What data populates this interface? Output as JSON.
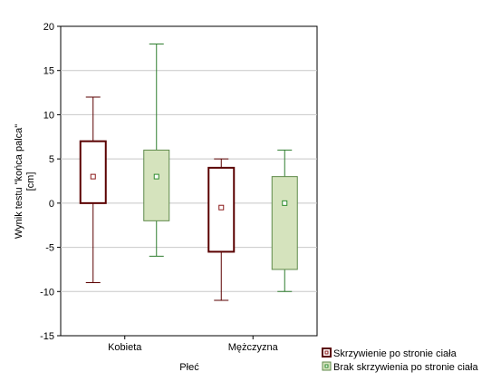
{
  "chart_data": {
    "type": "box",
    "xlabel": "Płeć",
    "ylabel_lines": [
      "Wynik testu  \"końca palca\"",
      "[cm]"
    ],
    "ylim": [
      -15,
      20
    ],
    "yticks": [
      -15,
      -10,
      -5,
      0,
      5,
      10,
      15,
      20
    ],
    "grid": true,
    "legend_position": "bottom-right",
    "categories": [
      "Kobieta",
      "Mężczyzna"
    ],
    "series": [
      {
        "name": "Skrzywienie po stronie ciała",
        "box_fill": "#ffffff",
        "color": "#5a0000",
        "point_color": "#8b1a1a",
        "values": [
          {
            "min": -9,
            "q1": 0,
            "median": 3,
            "q3": 7,
            "max": 12
          },
          {
            "min": -11,
            "q1": -5.5,
            "median": -0.5,
            "q3": 4,
            "max": 5
          }
        ]
      },
      {
        "name": "Brak skrzywienia po stronie ciała",
        "box_fill": "#d5e3bd",
        "color": "#5f8a4a",
        "point_color": "#2e8b2e",
        "whisker_color": "#2e7d2e",
        "values": [
          {
            "min": -6,
            "q1": -2,
            "median": 3,
            "q3": 6,
            "max": 18
          },
          {
            "min": -10,
            "q1": -7.5,
            "median": 0,
            "q3": 3,
            "max": 6
          }
        ]
      }
    ]
  }
}
